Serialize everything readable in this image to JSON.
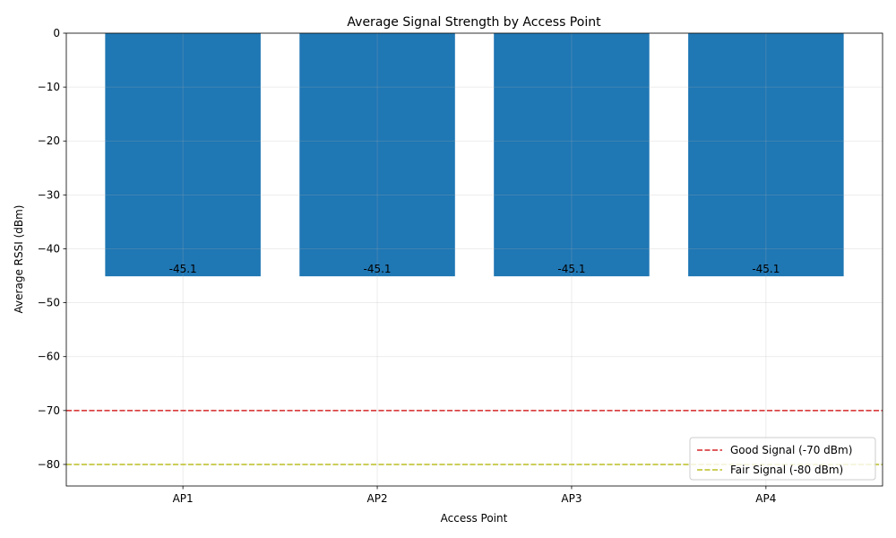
{
  "chart_data": {
    "type": "bar",
    "title": "Average Signal Strength by Access Point",
    "xlabel": "Access Point",
    "ylabel": "Average RSSI (dBm)",
    "categories": [
      "AP1",
      "AP2",
      "AP3",
      "AP4"
    ],
    "values": [
      -45.1,
      -45.1,
      -45.1,
      -45.1
    ],
    "data_labels": [
      "-45.1",
      "-45.1",
      "-45.1",
      "-45.1"
    ],
    "ylim": [
      -84,
      0
    ],
    "yticks": [
      0,
      -10,
      -20,
      -30,
      -40,
      -50,
      -60,
      -70,
      -80
    ],
    "ytick_labels": [
      "0",
      "−10",
      "−20",
      "−30",
      "−40",
      "−50",
      "−60",
      "−70",
      "−80"
    ],
    "grid": true,
    "bar_color": "#1f77b4",
    "reference_lines": [
      {
        "name": "Good Signal (-70 dBm)",
        "value": -70,
        "color": "#d62728",
        "style": "dashed"
      },
      {
        "name": "Fair Signal (-80 dBm)",
        "value": -80,
        "color": "#bcbd22",
        "style": "dashed"
      }
    ],
    "legend_position": "bottom-right"
  }
}
